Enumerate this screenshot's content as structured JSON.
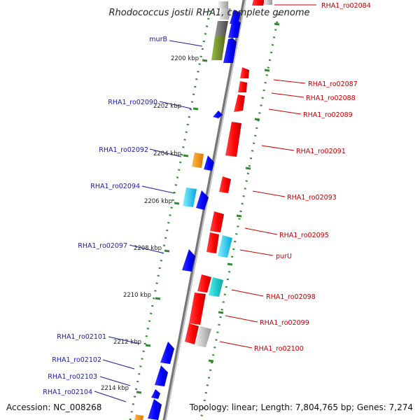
{
  "title": "Rhodococcus jostii RHA1, complete genome",
  "accession": "Accession: NC_008268",
  "summary": "Topology: linear; Length: 7,804,765 bp; Genes: 7,274",
  "colors": {
    "backbone": "#888888",
    "tick": "#2e8b2e",
    "forward_gene": "#ff0000",
    "reverse_gene": "#0000ff",
    "forward_label": "#c00000",
    "reverse_label": "#1a1aa0",
    "gray": "#bbbbbb",
    "olive": "#7a9a2a",
    "orange": "#ff9900",
    "cyan": "#00ccee",
    "teal": "#00cccc"
  },
  "kbp_labels": [
    {
      "name": "kbp-2200",
      "text": "2200 kbp"
    },
    {
      "name": "kbp-2202",
      "text": "2202 kbp"
    },
    {
      "name": "kbp-2204",
      "text": "2204 kbp"
    },
    {
      "name": "kbp-2206",
      "text": "2206 kbp"
    },
    {
      "name": "kbp-2208",
      "text": "2208 kbp"
    },
    {
      "name": "kbp-2210",
      "text": "2210 kbp"
    },
    {
      "name": "kbp-2212",
      "text": "2212 kbp"
    },
    {
      "name": "kbp-2214",
      "text": "2214 kbp"
    }
  ],
  "forward_labels": [
    {
      "name": "gene-label-rha1-ro02084",
      "text": "RHA1_ro02084"
    },
    {
      "name": "gene-label-rha1-ro02087",
      "text": "RHA1_ro02087"
    },
    {
      "name": "gene-label-rha1-ro02088",
      "text": "RHA1_ro02088"
    },
    {
      "name": "gene-label-rha1-ro02089",
      "text": "RHA1_ro02089"
    },
    {
      "name": "gene-label-rha1-ro02091",
      "text": "RHA1_ro02091"
    },
    {
      "name": "gene-label-rha1-ro02093",
      "text": "RHA1_ro02093"
    },
    {
      "name": "gene-label-rha1-ro02095",
      "text": "RHA1_ro02095"
    },
    {
      "name": "gene-label-puru",
      "text": "purU"
    },
    {
      "name": "gene-label-rha1-ro02098",
      "text": "RHA1_ro02098"
    },
    {
      "name": "gene-label-rha1-ro02099",
      "text": "RHA1_ro02099"
    },
    {
      "name": "gene-label-rha1-ro02100",
      "text": "RHA1_ro02100"
    }
  ],
  "reverse_labels": [
    {
      "name": "gene-label-murb",
      "text": "murB"
    },
    {
      "name": "gene-label-rha1-ro02090",
      "text": "RHA1_ro02090"
    },
    {
      "name": "gene-label-rha1-ro02092",
      "text": "RHA1_ro02092"
    },
    {
      "name": "gene-label-rha1-ro02094",
      "text": "RHA1_ro02094"
    },
    {
      "name": "gene-label-rha1-ro02097",
      "text": "RHA1_ro02097"
    },
    {
      "name": "gene-label-rha1-ro02101",
      "text": "RHA1_ro02101"
    },
    {
      "name": "gene-label-rha1-ro02102",
      "text": "RHA1_ro02102"
    },
    {
      "name": "gene-label-rha1-ro02103",
      "text": "RHA1_ro02103"
    },
    {
      "name": "gene-label-rha1-ro02104",
      "text": "RHA1_ro02104"
    }
  ]
}
